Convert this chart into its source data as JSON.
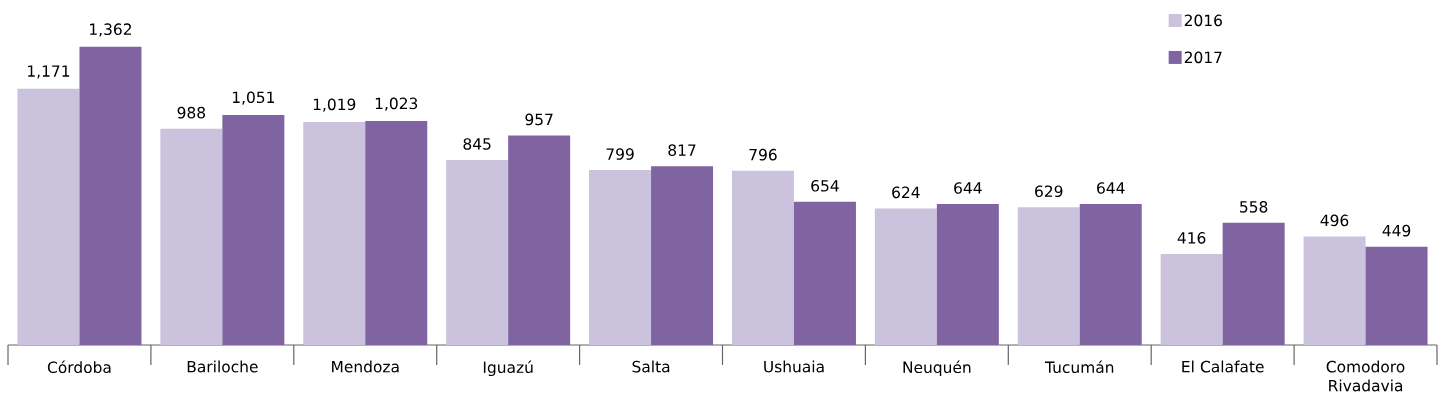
{
  "chart_data": {
    "type": "bar",
    "categories": [
      "Córdoba",
      "Bariloche",
      "Mendoza",
      "Iguazú",
      "Salta",
      "Ushuaia",
      "Neuquén",
      "Tucumán",
      "El Calafate",
      "Comodoro Rivadavia"
    ],
    "series": [
      {
        "name": "2016",
        "color": "#cbc2dd",
        "values": [
          1171,
          988,
          1019,
          845,
          799,
          796,
          624,
          629,
          416,
          496
        ],
        "value_labels": [
          "1,171",
          "988",
          "1,019",
          "845",
          "799",
          "796",
          "624",
          "629",
          "416",
          "496"
        ]
      },
      {
        "name": "2017",
        "color": "#8064a2",
        "values": [
          1362,
          1051,
          1023,
          957,
          817,
          654,
          644,
          644,
          558,
          449
        ],
        "value_labels": [
          "1,362",
          "1,051",
          "1,023",
          "957",
          "817",
          "654",
          "644",
          "644",
          "558",
          "449"
        ]
      }
    ],
    "legend": "top right"
  }
}
